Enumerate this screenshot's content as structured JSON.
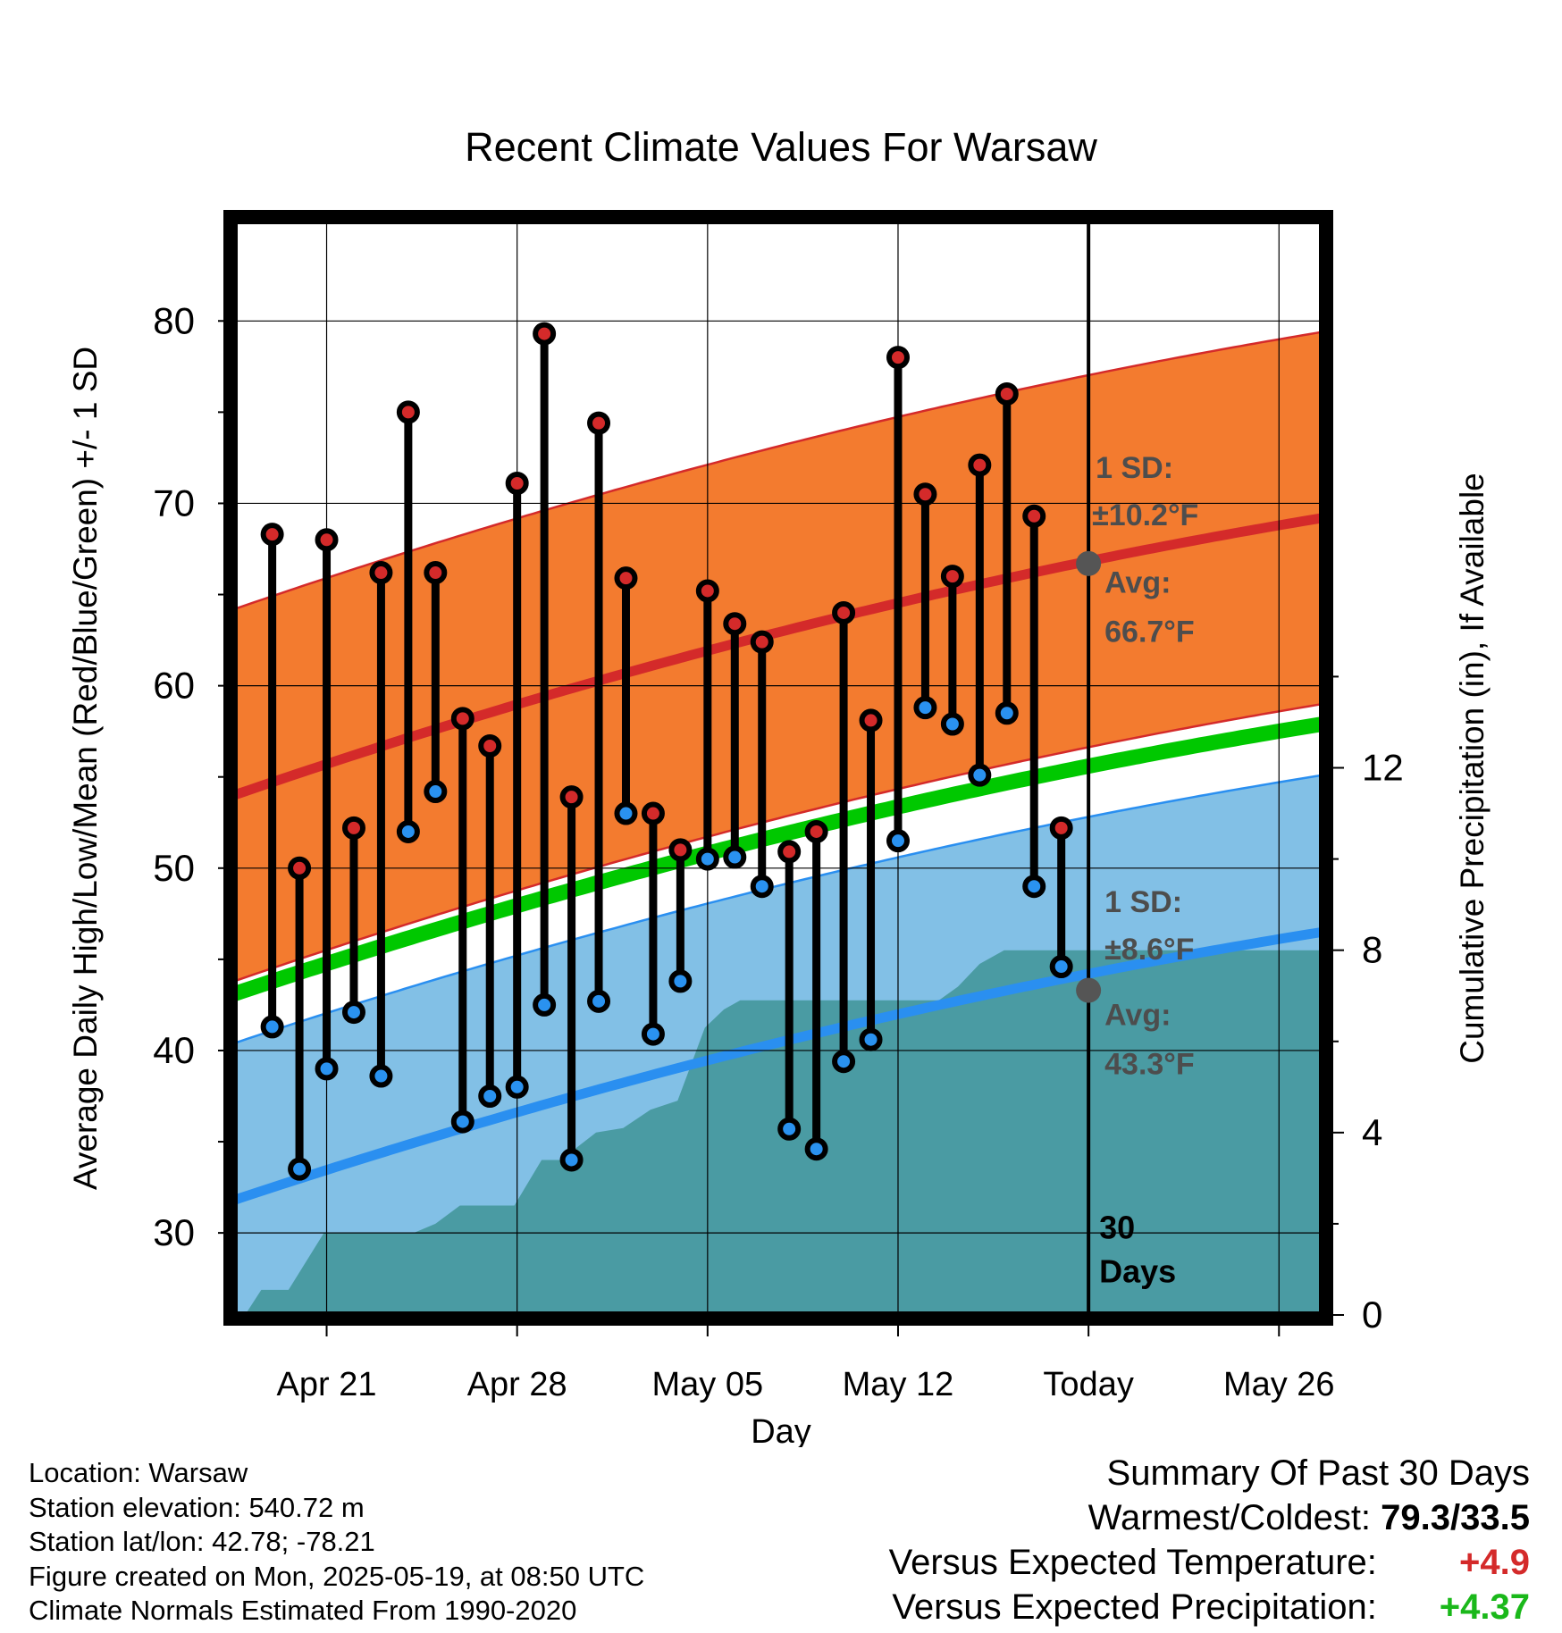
{
  "chart_data": {
    "type": "line",
    "title": "Recent Climate Values For Warsaw",
    "xlabel": "Day",
    "ylabel": "Average Daily High/Low/Mean (Red/Blue/Green) +/- 1 SD",
    "y2label": "Cumulative Precipitation (in), If Available",
    "ylim": [
      25.5,
      85.5
    ],
    "y2lim": [
      0,
      24
    ],
    "yticks": [
      30,
      40,
      50,
      60,
      70,
      80
    ],
    "y2ticks": [
      0,
      4,
      8,
      12
    ],
    "x_tick_labels": [
      {
        "day": 3,
        "label": "Apr 21"
      },
      {
        "day": 10,
        "label": "Apr 28"
      },
      {
        "day": 17,
        "label": "May 05"
      },
      {
        "day": 24,
        "label": "May 12"
      },
      {
        "day": 31,
        "label": "Today"
      },
      {
        "day": 38,
        "label": "May 26"
      }
    ],
    "today_day": 31,
    "days_label": "30\nDays",
    "highs": [
      68.3,
      50.0,
      68.0,
      52.2,
      66.2,
      75.0,
      66.2,
      58.2,
      56.7,
      71.1,
      79.3,
      53.9,
      74.4,
      65.9,
      53.0,
      51.0,
      65.2,
      63.4,
      62.4,
      50.9,
      52.0,
      64.0,
      58.1,
      78.0,
      70.5,
      66.0,
      72.1,
      76.0,
      69.3,
      52.2
    ],
    "lows": [
      41.3,
      33.5,
      39.0,
      42.1,
      38.6,
      52.0,
      54.2,
      36.1,
      37.5,
      38.0,
      42.5,
      34.0,
      42.7,
      53.0,
      40.9,
      43.8,
      50.5,
      50.6,
      49.0,
      35.7,
      34.6,
      39.4,
      40.6,
      51.5,
      58.8,
      57.9,
      55.1,
      58.5,
      49.0,
      44.6
    ],
    "normal_high_start": 54.0,
    "normal_high_end": 69.2,
    "normal_low_start": 31.8,
    "normal_low_end": 46.5,
    "normal_mean_start": 43.1,
    "normal_mean_end": 57.9,
    "sd_high": 10.2,
    "sd_low": 8.6,
    "precip_steps": [
      [
        0,
        0.0
      ],
      [
        0.6,
        0.55
      ],
      [
        1.6,
        0.55
      ],
      [
        2.9,
        1.8
      ],
      [
        6.2,
        1.8
      ],
      [
        7.0,
        2.0
      ],
      [
        7.9,
        2.4
      ],
      [
        9.9,
        2.4
      ],
      [
        10.9,
        3.4
      ],
      [
        11.6,
        3.4
      ],
      [
        12.9,
        4.0
      ],
      [
        13.9,
        4.1
      ],
      [
        14.9,
        4.5
      ],
      [
        15.9,
        4.7
      ],
      [
        16.9,
        6.3
      ],
      [
        17.6,
        6.7
      ],
      [
        18.2,
        6.9
      ],
      [
        23.1,
        6.9
      ],
      [
        25.5,
        6.9
      ],
      [
        26.2,
        7.2
      ],
      [
        27.0,
        7.7
      ],
      [
        27.9,
        8.0
      ],
      [
        39.6,
        8.0
      ]
    ],
    "colors": {
      "high_band": "#f37b2f",
      "high_line": "#d42a2a",
      "low_band": "#82c0e6",
      "low_line": "#2a8ff0",
      "mean_line": "#00c800",
      "precip": "#4a9ba3",
      "high_dot": "#d42a2a",
      "low_dot": "#2a92f0",
      "annot": "#4d4d4d"
    },
    "annotations": {
      "high_sd_title": "1 SD:",
      "high_sd": "±10.2°F",
      "high_avg_title": "Avg:",
      "high_avg": "66.7°F",
      "low_sd_title": "1 SD:",
      "low_sd": "±8.6°F",
      "low_avg_title": "Avg:",
      "low_avg": "43.3°F",
      "today_high": 66.7,
      "today_low": 43.3
    }
  },
  "footer": {
    "location": "Location: Warsaw",
    "elevation": "Station elevation: 540.72 m",
    "latlon": "Station lat/lon: 42.78; -78.21",
    "created": "Figure created on Mon, 2025-05-19, at 08:50 UTC",
    "normals": "Climate Normals Estimated From 1990-2020"
  },
  "summary": {
    "title": "Summary Of Past 30 Days",
    "warmest_label": "Warmest/Coldest:",
    "warmest_value": "79.3/33.5",
    "temp_label": "Versus Expected Temperature:",
    "temp_value": "+4.9",
    "temp_color": "#d42a2a",
    "precip_label": "Versus Expected Precipitation:",
    "precip_value": "+4.37",
    "precip_color": "#1ab81a"
  }
}
